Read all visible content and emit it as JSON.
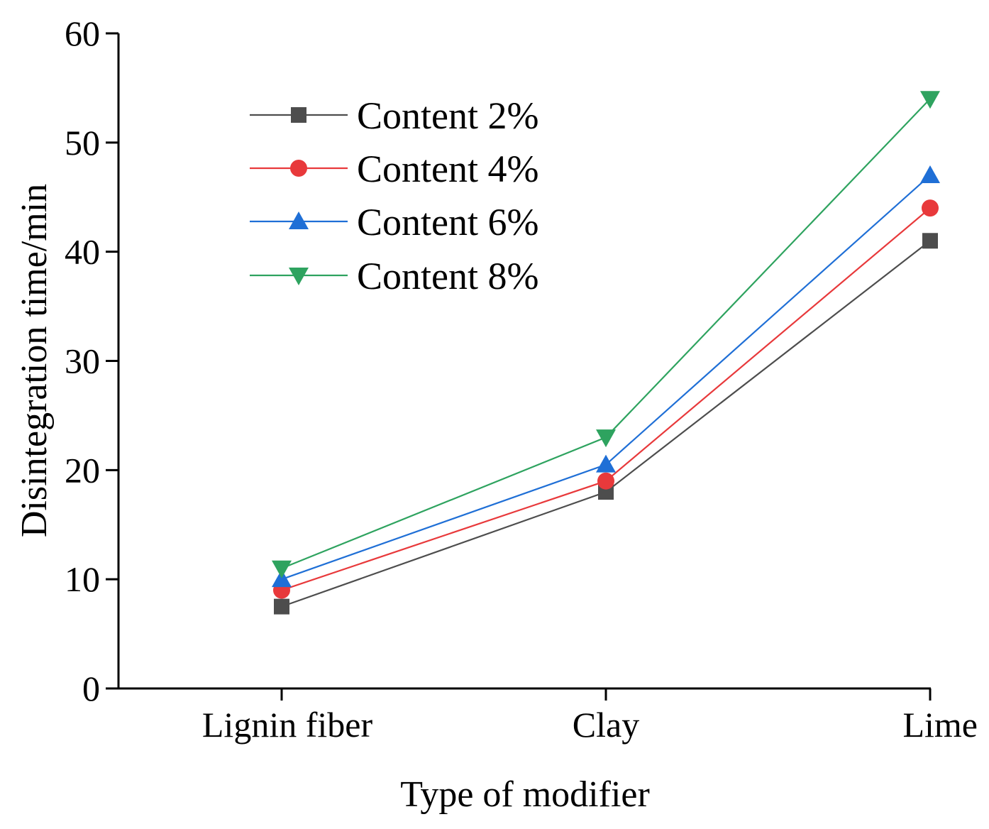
{
  "chart_data": {
    "type": "line",
    "title": "",
    "xlabel": "Type of modifier",
    "ylabel": "Disintegration time/min",
    "categories": [
      "Lignin fiber",
      "Clay",
      "Lime"
    ],
    "ylim": [
      0,
      60
    ],
    "yticks": [
      "0",
      "10",
      "20",
      "30",
      "40",
      "50",
      "60"
    ],
    "grid": false,
    "legend_position": "top-left",
    "series": [
      {
        "name": "Content 2%",
        "values": [
          7.5,
          18,
          41
        ],
        "color": "#4d4d4d",
        "marker": "square"
      },
      {
        "name": "Content 4%",
        "values": [
          9,
          19,
          44
        ],
        "color": "#e8393b",
        "marker": "circle"
      },
      {
        "name": "Content 6%",
        "values": [
          10,
          20.5,
          47
        ],
        "color": "#1f6fd6",
        "marker": "triangle-up"
      },
      {
        "name": "Content 8%",
        "values": [
          11,
          23,
          54
        ],
        "color": "#2ea35f",
        "marker": "triangle-down"
      }
    ]
  }
}
